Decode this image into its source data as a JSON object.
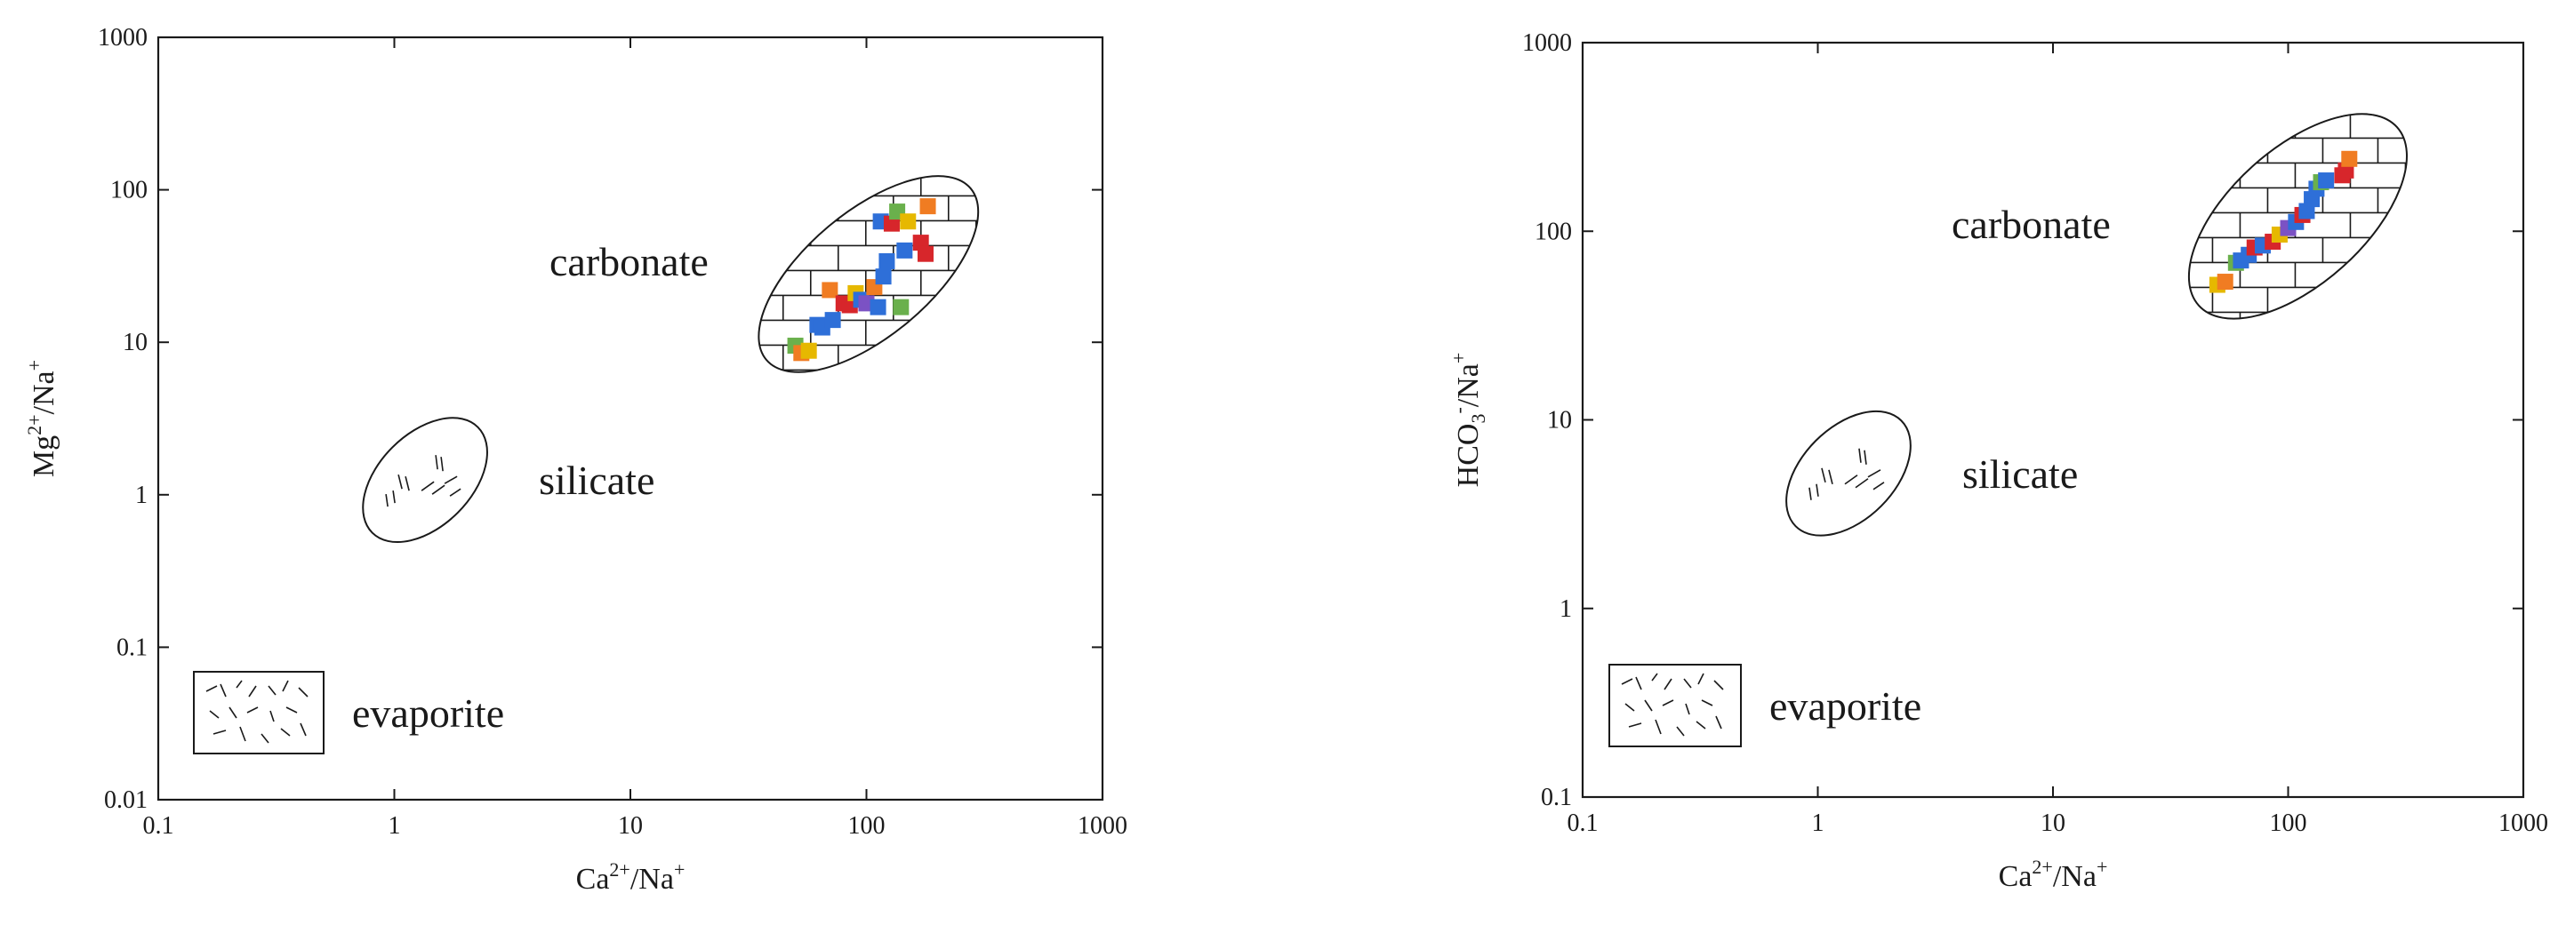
{
  "chart_data": [
    {
      "type": "scatter",
      "id": "left",
      "xlabel": {
        "base": "Ca",
        "sup": "2+",
        "mid": "/Na",
        "sup2": "+"
      },
      "ylabel": {
        "base": "Mg",
        "sup": "2+",
        "mid": "/Na",
        "sup2": "+"
      },
      "x_scale": "log",
      "y_scale": "log",
      "xlim": [
        0.1,
        1000
      ],
      "ylim": [
        0.01,
        1000
      ],
      "x_ticks": [
        "0.1",
        "1",
        "10",
        "100",
        "1000"
      ],
      "y_ticks": [
        "0.01",
        "0.1",
        "1",
        "10",
        "100",
        "1000"
      ],
      "regions": {
        "carbonate": "carbonate",
        "silicate": "silicate",
        "evaporite": "evaporite"
      },
      "points": [
        {
          "x": 50,
          "y": 9.5,
          "color": "#6ab04c"
        },
        {
          "x": 53,
          "y": 8.5,
          "color": "#f07c22"
        },
        {
          "x": 57,
          "y": 8.8,
          "color": "#e6b800"
        },
        {
          "x": 62,
          "y": 13,
          "color": "#2e6fd8"
        },
        {
          "x": 65,
          "y": 12.5,
          "color": "#2e6fd8"
        },
        {
          "x": 70,
          "y": 22,
          "color": "#f07c22"
        },
        {
          "x": 72,
          "y": 14,
          "color": "#2e6fd8"
        },
        {
          "x": 80,
          "y": 18,
          "color": "#d7262b"
        },
        {
          "x": 85,
          "y": 17.5,
          "color": "#d7262b"
        },
        {
          "x": 90,
          "y": 21,
          "color": "#e6b800"
        },
        {
          "x": 95,
          "y": 19,
          "color": "#2e6fd8"
        },
        {
          "x": 100,
          "y": 18,
          "color": "#7b52c4"
        },
        {
          "x": 108,
          "y": 23,
          "color": "#f07c22"
        },
        {
          "x": 112,
          "y": 17,
          "color": "#2e6fd8"
        },
        {
          "x": 118,
          "y": 27,
          "color": "#2e6fd8"
        },
        {
          "x": 122,
          "y": 34,
          "color": "#2e6fd8"
        },
        {
          "x": 115,
          "y": 62,
          "color": "#2e6fd8"
        },
        {
          "x": 128,
          "y": 60,
          "color": "#d7262b"
        },
        {
          "x": 135,
          "y": 72,
          "color": "#6ab04c"
        },
        {
          "x": 140,
          "y": 17,
          "color": "#6ab04c"
        },
        {
          "x": 145,
          "y": 40,
          "color": "#2e6fd8"
        },
        {
          "x": 150,
          "y": 62,
          "color": "#e6b800"
        },
        {
          "x": 170,
          "y": 45,
          "color": "#d7262b"
        },
        {
          "x": 178,
          "y": 38,
          "color": "#d7262b"
        },
        {
          "x": 182,
          "y": 78,
          "color": "#f07c22"
        }
      ]
    },
    {
      "type": "scatter",
      "id": "right",
      "xlabel": {
        "base": "Ca",
        "sup": "2+",
        "mid": "/Na",
        "sup2": "+"
      },
      "ylabel": {
        "base": "HCO",
        "sub": "3",
        "sup": "-",
        "mid": "/Na",
        "sup2": "+"
      },
      "x_scale": "log",
      "y_scale": "log",
      "xlim": [
        0.1,
        1000
      ],
      "ylim": [
        0.1,
        1000
      ],
      "x_ticks": [
        "0.1",
        "1",
        "10",
        "100",
        "1000"
      ],
      "y_ticks": [
        "0.1",
        "1",
        "10",
        "100",
        "1000"
      ],
      "regions": {
        "carbonate": "carbonate",
        "silicate": "silicate",
        "evaporite": "evaporite"
      },
      "points": [
        {
          "x": 50,
          "y": 52,
          "color": "#e6b800"
        },
        {
          "x": 54,
          "y": 54,
          "color": "#f07c22"
        },
        {
          "x": 60,
          "y": 68,
          "color": "#6ab04c"
        },
        {
          "x": 63,
          "y": 70,
          "color": "#2e6fd8"
        },
        {
          "x": 68,
          "y": 75,
          "color": "#2e6fd8"
        },
        {
          "x": 72,
          "y": 82,
          "color": "#d7262b"
        },
        {
          "x": 78,
          "y": 84,
          "color": "#2e6fd8"
        },
        {
          "x": 86,
          "y": 88,
          "color": "#d7262b"
        },
        {
          "x": 92,
          "y": 96,
          "color": "#e6b800"
        },
        {
          "x": 100,
          "y": 104,
          "color": "#7b52c4"
        },
        {
          "x": 108,
          "y": 112,
          "color": "#2e6fd8"
        },
        {
          "x": 115,
          "y": 122,
          "color": "#d7262b"
        },
        {
          "x": 120,
          "y": 128,
          "color": "#2e6fd8"
        },
        {
          "x": 126,
          "y": 148,
          "color": "#2e6fd8"
        },
        {
          "x": 132,
          "y": 168,
          "color": "#2e6fd8"
        },
        {
          "x": 138,
          "y": 182,
          "color": "#6ab04c"
        },
        {
          "x": 145,
          "y": 186,
          "color": "#2e6fd8"
        },
        {
          "x": 170,
          "y": 198,
          "color": "#d7262b"
        },
        {
          "x": 176,
          "y": 210,
          "color": "#d7262b"
        },
        {
          "x": 182,
          "y": 242,
          "color": "#f07c22"
        }
      ]
    }
  ]
}
